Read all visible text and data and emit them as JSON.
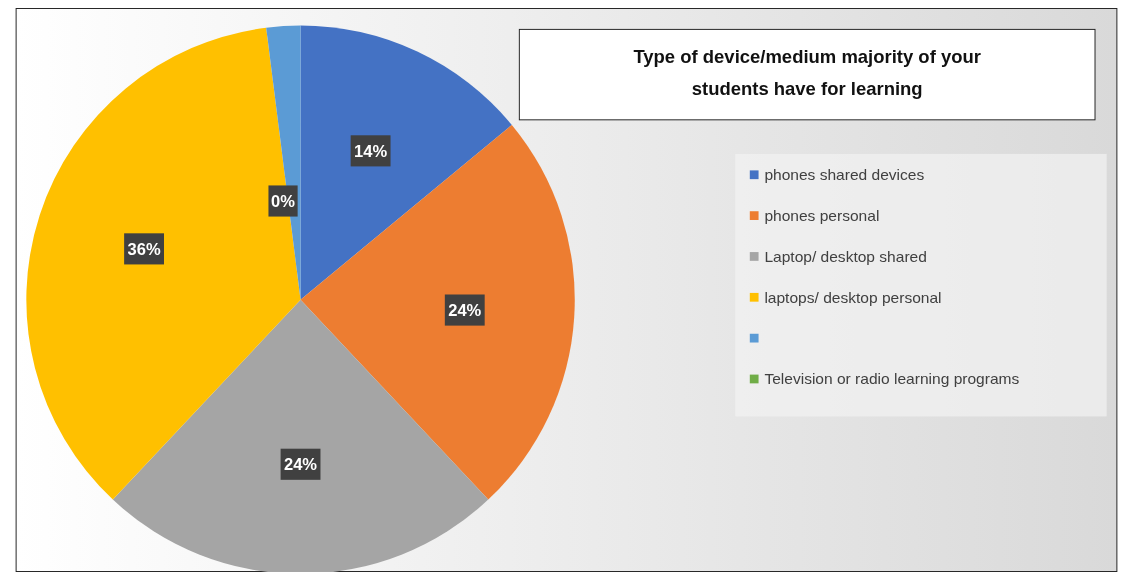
{
  "chart_data": {
    "type": "pie",
    "title": "Type of device/medium majority of your students have for learning",
    "categories": [
      "phones shared devices",
      "phones personal",
      "Laptop/ desktop shared",
      "laptops/ desktop personal",
      null,
      "Television or radio learning programs"
    ],
    "values": [
      14,
      24,
      24,
      36,
      2,
      0
    ],
    "colors": [
      "#4472c4",
      "#ed7d31",
      "#a5a5a5",
      "#ffc000",
      "#5b9bd5",
      "#70ad47"
    ],
    "value_labels": [
      "14%",
      "24%",
      "24%",
      "36%",
      null,
      "0%"
    ],
    "legend": "right"
  }
}
